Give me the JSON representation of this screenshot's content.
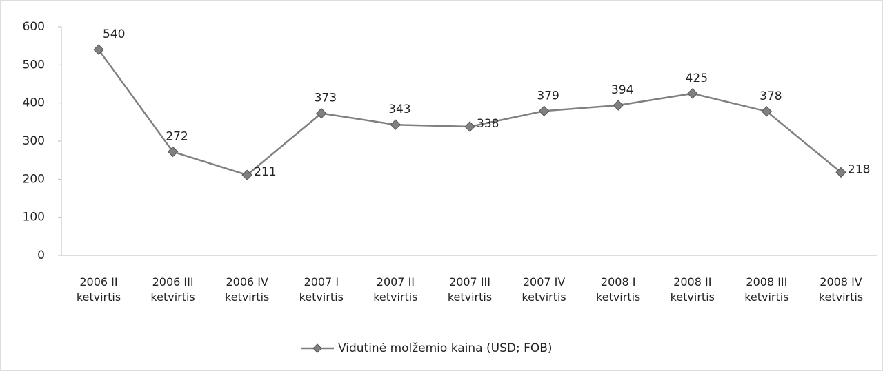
{
  "chart_data": {
    "type": "line",
    "categories": [
      "2006 II ketvirtis",
      "2006 III ketvirtis",
      "2006 IV ketvirtis",
      "2007 I ketvirtis",
      "2007 II ketvirtis",
      "2007 III ketvirtis",
      "2007 IV ketvirtis",
      "2008 I ketvirtis",
      "2008 II ketvirtis",
      "2008 III ketvirtis",
      "2008 IV ketvirtis"
    ],
    "series": [
      {
        "name": "Vidutinė molžemio kaina (USD; FOB)",
        "color": "#808080",
        "values": [
          540,
          272,
          211,
          373,
          343,
          338,
          379,
          394,
          425,
          378,
          218
        ]
      }
    ],
    "ylim": [
      0,
      600
    ],
    "yticks": [
      0,
      100,
      200,
      300,
      400,
      500,
      600
    ],
    "grid": false,
    "legend": "bottom"
  }
}
